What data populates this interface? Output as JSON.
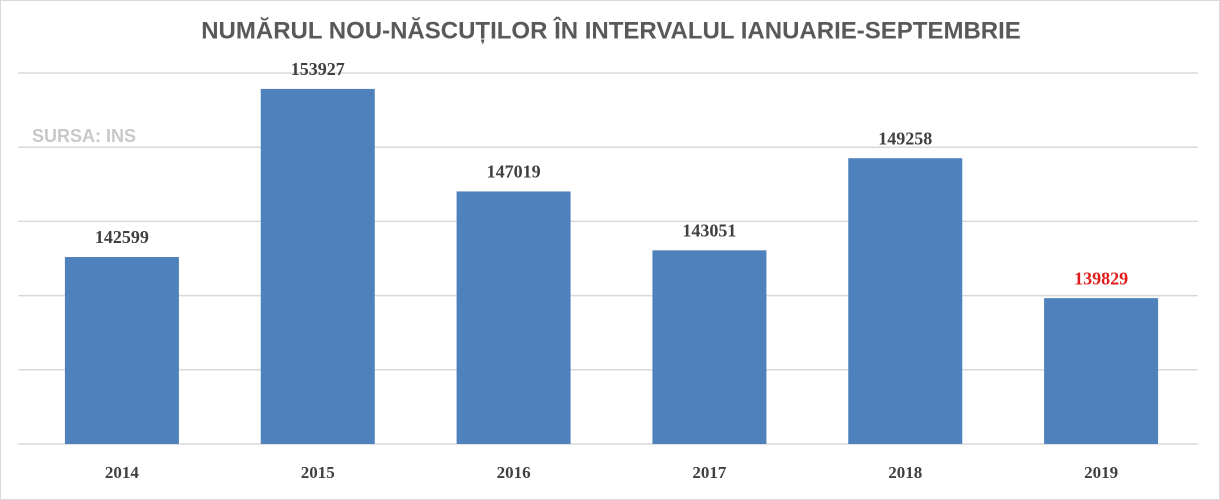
{
  "chart_data": {
    "type": "bar",
    "title": "NUMĂRUL NOU-NĂSCUȚILOR ÎN INTERVALUL IANUARIE-SEPTEMBRIE",
    "annotation": "SURSA: INS",
    "categories": [
      "2014",
      "2015",
      "2016",
      "2017",
      "2018",
      "2019"
    ],
    "values": [
      142599,
      153927,
      147019,
      143051,
      149258,
      139829
    ],
    "color": "#4f81bd",
    "value_label_colors": [
      "#404040",
      "#404040",
      "#404040",
      "#404040",
      "#404040",
      "#e01b1b"
    ],
    "ylim": [
      130000,
      155000
    ],
    "yticks": [
      130000,
      135000,
      140000,
      145000,
      150000,
      155000
    ],
    "grid": true
  }
}
